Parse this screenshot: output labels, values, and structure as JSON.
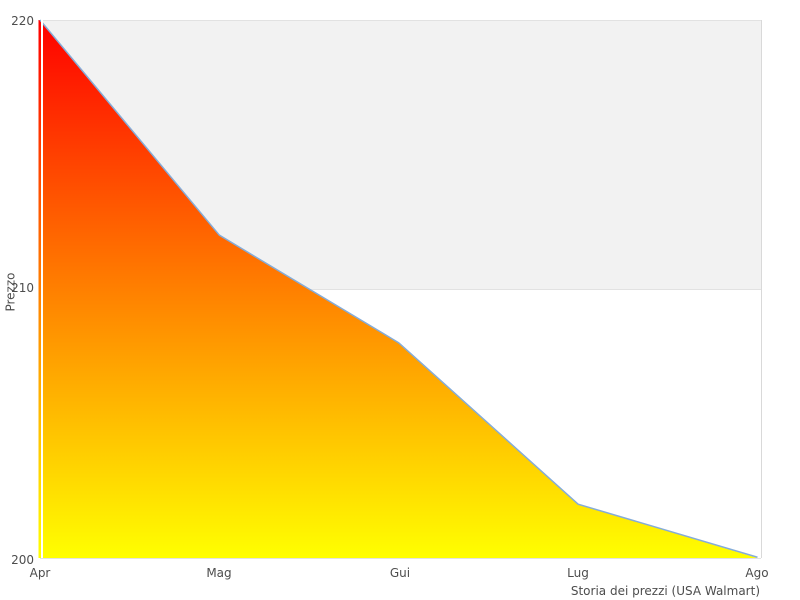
{
  "chart_data": {
    "type": "area",
    "title": "",
    "xlabel": "Storia dei prezzi (USA Walmart)",
    "ylabel": "Prezzo",
    "categories": [
      "Apr",
      "Mag",
      "Gui",
      "Lug",
      "Ago"
    ],
    "series": [
      {
        "name": "Prezzo",
        "values": [
          220,
          212,
          208,
          202,
          200
        ]
      }
    ],
    "ylim": [
      200,
      220
    ],
    "yticks": [
      200,
      210,
      220
    ],
    "legend": "none",
    "grid": "shaded horizontal band between y=210 and y=220, light gridlines at each y tick, right border spine",
    "colors": {
      "gradient_top": "#ff0000",
      "gradient_bottom": "#ffff00",
      "line": "#85acd8",
      "band": "#f2f2f2",
      "grid_line": "#e2e2e2",
      "spine": "#d9d9d9",
      "text": "#4d4d4d",
      "background": "#ffffff"
    }
  }
}
